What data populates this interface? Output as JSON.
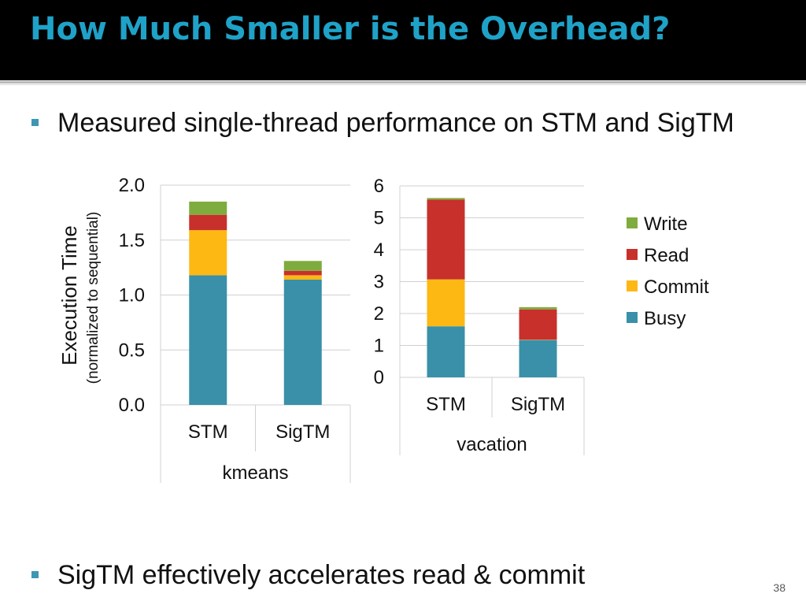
{
  "slide": {
    "title": "How Much Smaller is the Overhead?",
    "bullets": [
      "Measured single-thread performance on STM and SigTM",
      "SigTM effectively accelerates read & commit"
    ],
    "slide_number": "38"
  },
  "colors": {
    "title": "#1fa2c8",
    "bullet": "#3d96b3",
    "Busy": "#3a90a8",
    "Commit": "#fdb813",
    "Read": "#c8302c",
    "Write": "#7fac3e"
  },
  "chart_data": [
    {
      "type": "bar",
      "stacked": true,
      "title": "",
      "group_label": "kmeans",
      "ylabel": "Execution Time",
      "ylabel_sub": "(normalized to sequential)",
      "ylim": [
        0,
        2.0
      ],
      "yticks": [
        "0.0",
        "0.5",
        "1.0",
        "1.5",
        "2.0"
      ],
      "categories": [
        "STM",
        "SigTM"
      ],
      "series": [
        {
          "name": "Busy",
          "values": [
            1.18,
            1.14
          ]
        },
        {
          "name": "Commit",
          "values": [
            0.41,
            0.04
          ]
        },
        {
          "name": "Read",
          "values": [
            0.14,
            0.04
          ]
        },
        {
          "name": "Write",
          "values": [
            0.12,
            0.09
          ]
        }
      ],
      "grid": true
    },
    {
      "type": "bar",
      "stacked": true,
      "title": "",
      "group_label": "vacation",
      "ylim": [
        0,
        6
      ],
      "yticks": [
        "0",
        "1",
        "2",
        "3",
        "4",
        "5",
        "6"
      ],
      "categories": [
        "STM",
        "SigTM"
      ],
      "series": [
        {
          "name": "Busy",
          "values": [
            1.6,
            1.17
          ]
        },
        {
          "name": "Commit",
          "values": [
            1.47,
            0.01
          ]
        },
        {
          "name": "Read",
          "values": [
            2.5,
            0.95
          ]
        },
        {
          "name": "Write",
          "values": [
            0.05,
            0.07
          ]
        }
      ],
      "grid": true,
      "legend": {
        "placement": "right",
        "entries": [
          "Write",
          "Read",
          "Commit",
          "Busy"
        ]
      }
    }
  ]
}
